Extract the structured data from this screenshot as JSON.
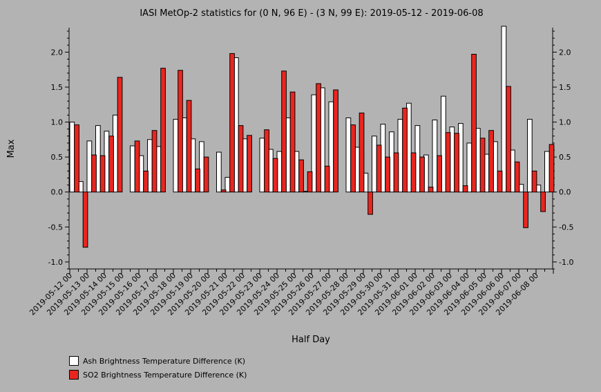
{
  "chart_data": {
    "type": "bar",
    "title": "IASI MetOp-2 statistics for (0 N, 96 E) - (3 N, 99 E): 2019-05-12 - 2019-06-08",
    "xlabel": "Half Day",
    "ylabel": "Max",
    "ylim": [
      -1.1,
      2.35
    ],
    "yticks": [
      -1.0,
      -0.5,
      0.0,
      0.5,
      1.0,
      1.5,
      2.0
    ],
    "ytick_labels": [
      "-1.0",
      "-0.5",
      "0.0",
      "0.5",
      "1.0",
      "1.5",
      "2.0"
    ],
    "xtick_labels": [
      "2019-05-12 00",
      "2019-05-13 00",
      "2019-05-14 00",
      "2019-05-15 00",
      "2019-05-16 00",
      "2019-05-17 00",
      "2019-05-18 00",
      "2019-05-19 00",
      "2019-05-20 00",
      "2019-05-21 00",
      "2019-05-22 00",
      "2019-05-23 00",
      "2019-05-24 00",
      "2019-05-25 00",
      "2019-05-26 00",
      "2019-05-27 00",
      "2019-05-28 00",
      "2019-05-29 00",
      "2019-05-30 00",
      "2019-05-31 00",
      "2019-06-01 00",
      "2019-06-02 00",
      "2019-06-03 00",
      "2019-06-04 00",
      "2019-06-05 00",
      "2019-06-06 00",
      "2019-06-07 00",
      "2019-06-08 00"
    ],
    "grid": false,
    "legend_position": "bottom-left",
    "series": [
      {
        "name": "Ash Brightness Temperature Difference (K)",
        "color": "#ffffff",
        "values": [
          1.0,
          0.15,
          0.73,
          0.95,
          0.87,
          1.1,
          null,
          0.66,
          0.52,
          0.75,
          0.65,
          null,
          1.04,
          1.06,
          0.76,
          0.72,
          null,
          0.57,
          0.21,
          1.92,
          0.76,
          null,
          0.77,
          0.61,
          0.58,
          1.06,
          0.58,
          0.01,
          1.39,
          1.49,
          1.29,
          null,
          1.06,
          0.64,
          0.27,
          0.8,
          0.97,
          0.86,
          1.04,
          1.27,
          0.95,
          0.53,
          1.03,
          1.37,
          0.93,
          0.98,
          0.7,
          0.91,
          0.54,
          0.72,
          2.37,
          0.6,
          0.11,
          1.04,
          0.1,
          0.58
        ]
      },
      {
        "name": "SO2 Brightness Temperature Difference (K)",
        "color": "#e8261f",
        "values": [
          0.96,
          -0.79,
          0.53,
          0.52,
          0.8,
          1.64,
          null,
          0.73,
          0.3,
          0.88,
          1.77,
          null,
          1.74,
          1.31,
          0.33,
          0.5,
          null,
          0.03,
          1.98,
          0.95,
          0.81,
          null,
          0.89,
          0.48,
          1.73,
          1.43,
          0.46,
          0.29,
          1.55,
          0.37,
          1.46,
          null,
          0.96,
          1.13,
          -0.32,
          0.67,
          0.5,
          0.56,
          1.2,
          0.56,
          0.5,
          0.07,
          0.52,
          0.85,
          0.84,
          0.09,
          1.97,
          0.77,
          0.88,
          0.3,
          1.51,
          0.43,
          -0.51,
          0.3,
          -0.28,
          0.68
        ]
      }
    ]
  }
}
